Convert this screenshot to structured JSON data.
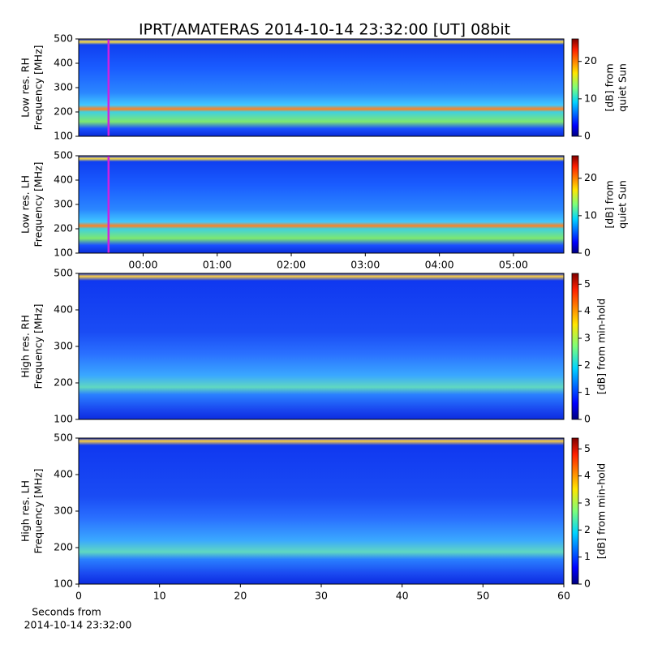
{
  "title": "IPRT/AMATERAS 2014-10-14 23:32:00 [UT]   08bit",
  "chart_data": [
    {
      "type": "heatmap",
      "colormap": "jet",
      "y_label": [
        "Low res. RH",
        "Frequency [MHz]"
      ],
      "ylim": [
        100,
        500
      ],
      "yticks": [
        100,
        200,
        300,
        400,
        500
      ],
      "xlim": [
        -0.87,
        5.68
      ],
      "marker_x": -0.467,
      "marker_color": "#d020e0",
      "colorbar": {
        "label": [
          "[dB] from",
          "quiet Sun"
        ],
        "lim": [
          0,
          26
        ],
        "ticks": [
          0,
          10,
          20
        ]
      }
    },
    {
      "type": "heatmap",
      "colormap": "jet",
      "y_label": [
        "Low res. LH",
        "Frequency [MHz]"
      ],
      "ylim": [
        100,
        500
      ],
      "yticks": [
        100,
        200,
        300,
        400,
        500
      ],
      "xlim": [
        -0.87,
        5.68
      ],
      "marker_x": -0.467,
      "marker_color": "#d020e0",
      "xticks": [
        {
          "value": 0,
          "label": "00:00"
        },
        {
          "value": 1,
          "label": "01:00"
        },
        {
          "value": 2,
          "label": "02:00"
        },
        {
          "value": 3,
          "label": "03:00"
        },
        {
          "value": 4,
          "label": "04:00"
        },
        {
          "value": 5,
          "label": "05:00"
        }
      ],
      "colorbar": {
        "label": [
          "[dB] from",
          "quiet Sun"
        ],
        "lim": [
          0,
          26
        ],
        "ticks": [
          0,
          10,
          20
        ]
      }
    },
    {
      "type": "heatmap",
      "colormap": "jet",
      "y_label": [
        "High res. RH",
        "Frequency [MHz]"
      ],
      "ylim": [
        100,
        500
      ],
      "yticks": [
        100,
        200,
        300,
        400,
        500
      ],
      "xlim": [
        0,
        60
      ],
      "colorbar": {
        "label": [
          "[dB] from min-hold"
        ],
        "lim": [
          0,
          5.4
        ],
        "ticks": [
          0,
          1,
          2,
          3,
          4,
          5
        ]
      }
    },
    {
      "type": "heatmap",
      "colormap": "jet",
      "y_label": [
        "High res. LH",
        "Frequency [MHz]"
      ],
      "ylim": [
        100,
        500
      ],
      "yticks": [
        100,
        200,
        300,
        400,
        500
      ],
      "xlim": [
        0,
        60
      ],
      "xticks": [
        0,
        10,
        20,
        30,
        40,
        50,
        60
      ],
      "x_label": [
        "Seconds from",
        "2014-10-14 23:32:00"
      ],
      "colorbar": {
        "label": [
          "[dB] from min-hold"
        ],
        "lim": [
          0,
          5.4
        ],
        "ticks": [
          0,
          1,
          2,
          3,
          4,
          5
        ]
      }
    }
  ]
}
